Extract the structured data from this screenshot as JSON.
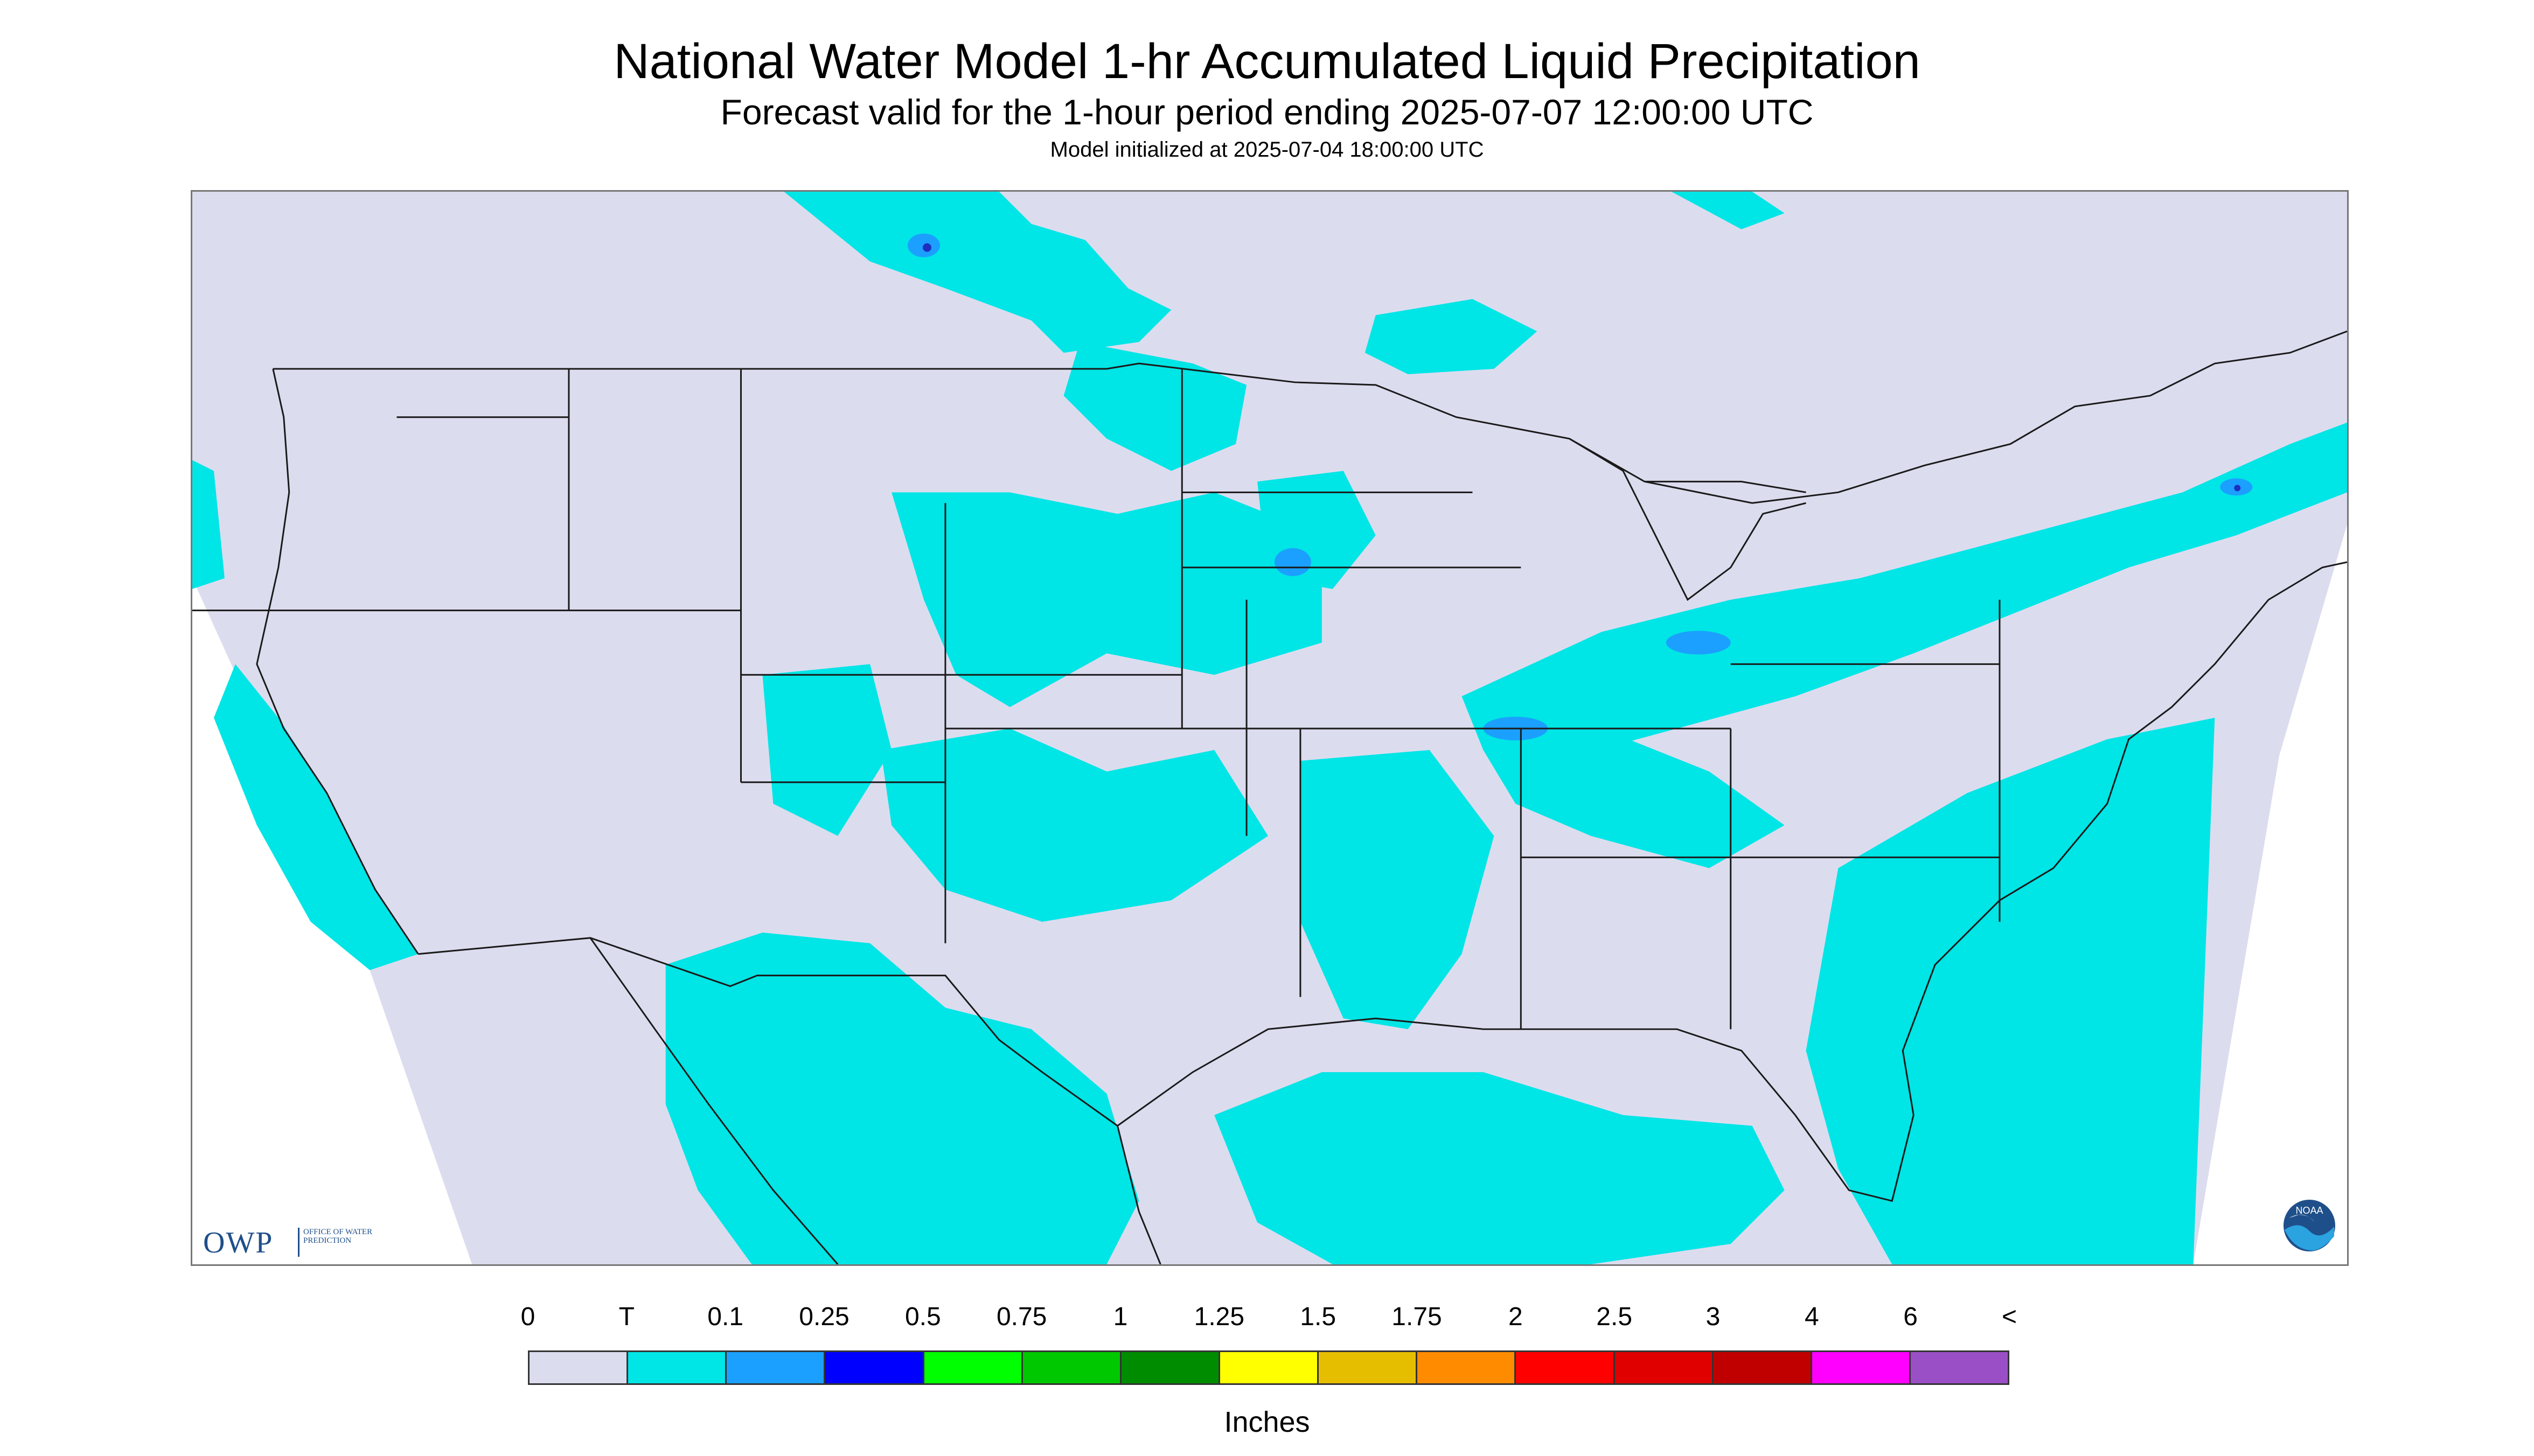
{
  "title": "National Water Model 1-hr Accumulated Liquid Precipitation",
  "subtitle": "Forecast valid for the 1-hour period ending 2025-07-07 12:00:00 UTC",
  "init_line": "Model initialized at 2025-07-04 18:00:00 UTC",
  "logos": {
    "owp": "OWP",
    "owp_sub": "OFFICE OF WATER PREDICTION",
    "noaa": "NOAA"
  },
  "colors": {
    "no_data": "#dcdcef",
    "trace": "#00e5e5",
    "heavier_cells": "#1ba0ff",
    "peak_cells": "#1f2fbd",
    "outline": "#1a1a1a"
  },
  "legend": {
    "labels": [
      "0",
      "T",
      "0.1",
      "0.25",
      "0.5",
      "0.75",
      "1",
      "1.25",
      "1.5",
      "1.75",
      "2",
      "2.5",
      "3",
      "4",
      "6",
      "<"
    ],
    "colors": [
      "#dcdcef",
      "#00e5e5",
      "#1ba0ff",
      "#0000ff",
      "#00ff00",
      "#00c800",
      "#008c00",
      "#ffff00",
      "#e6be00",
      "#ff8c00",
      "#ff0000",
      "#e00000",
      "#c00000",
      "#ff00ff",
      "#9b4fc7"
    ],
    "unit": "Inches"
  }
}
